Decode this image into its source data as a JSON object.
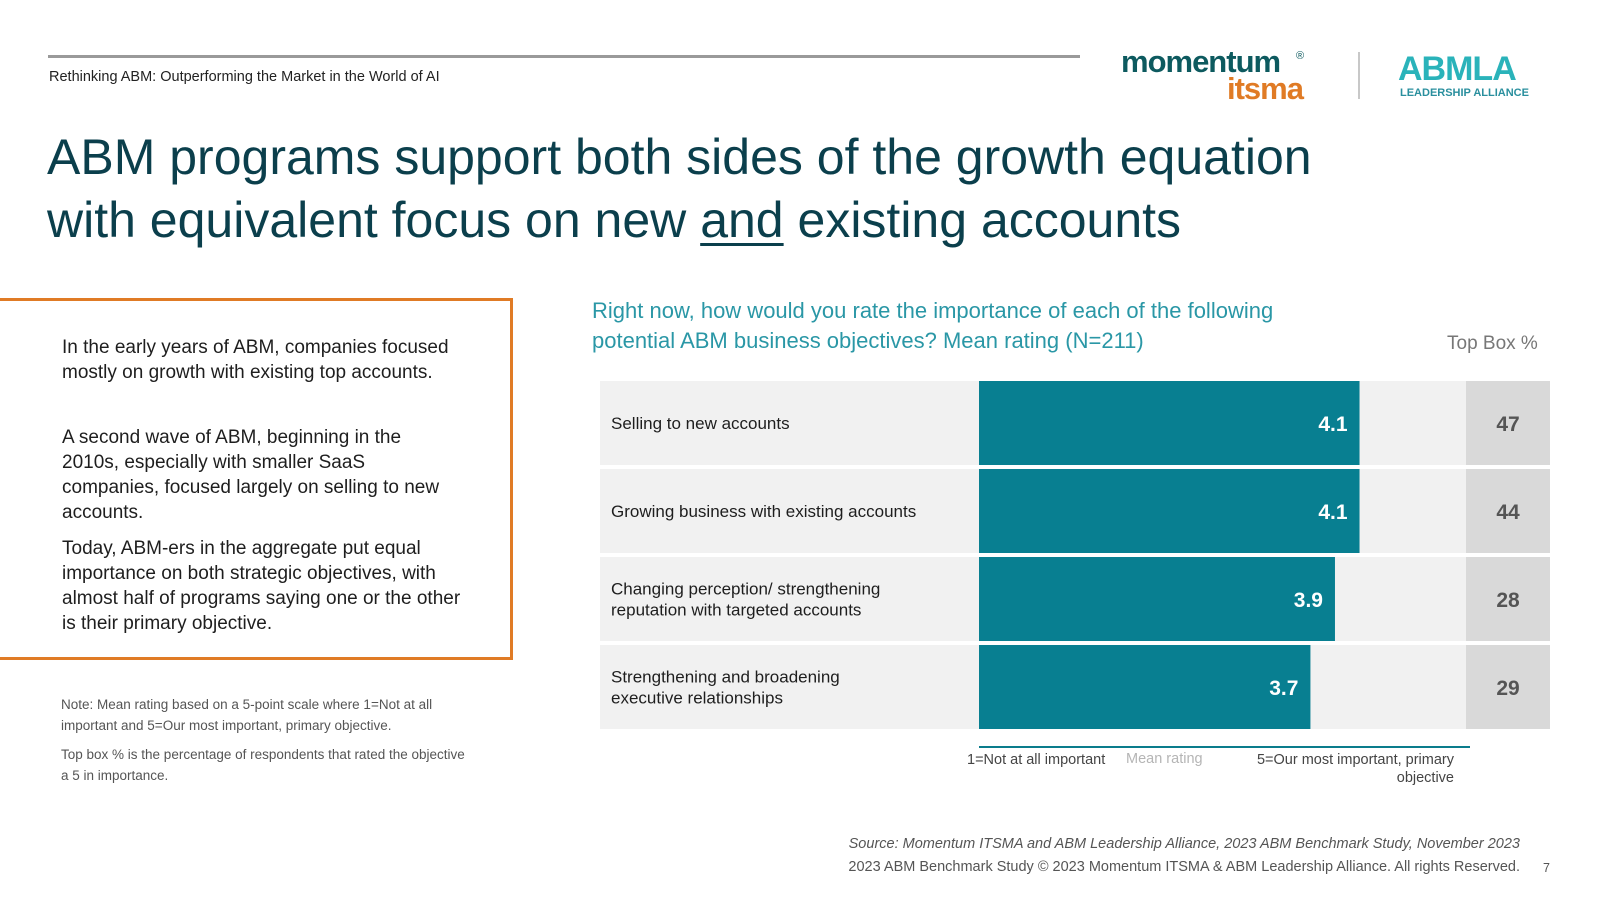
{
  "header": {
    "subtitle": "Rethinking ABM: Outperforming the Market in the World of AI"
  },
  "logos": {
    "momentum_line1": "momentum",
    "momentum_reg": "®",
    "momentum_line2": "itsma",
    "abmla_line1": "ABMLA",
    "abmla_line2": "LEADERSHIP ALLIANCE"
  },
  "title": {
    "line1": "ABM programs support both sides of the growth equation",
    "line2_pre": "with equivalent focus on new ",
    "line2_emph": "and",
    "line2_post": " existing accounts"
  },
  "callout": {
    "p1": "In the early years of ABM, companies focused mostly on growth with existing top accounts.",
    "p2": "A second wave of ABM, beginning in the 2010s, especially with smaller SaaS companies, focused largely on selling to new accounts.",
    "p3": "Today, ABM-ers in the aggregate put equal importance on both strategic objectives, with almost half of programs saying one or the other is their primary objective."
  },
  "notes": {
    "n1": "Note: Mean rating based on a 5-point scale where 1=Not at all important and 5=Our most important, primary objective.",
    "n2": "Top box % is the percentage of respondents that rated the objective a 5 in importance."
  },
  "question": "Right now, how would you rate the importance of each of the following potential ABM business objectives? Mean rating (N=211)",
  "topbox_header": "Top Box %",
  "chart_data": {
    "type": "bar",
    "orientation": "horizontal",
    "categories": [
      [
        "Selling to new accounts"
      ],
      [
        "Growing business with existing accounts"
      ],
      [
        "Changing perception/ strengthening",
        "reputation with targeted accounts"
      ],
      [
        "Strengthening and broadening",
        "executive relationships"
      ]
    ],
    "values": [
      4.1,
      4.1,
      3.9,
      3.7
    ],
    "value_labels": [
      "4.1",
      "4.1",
      "3.9",
      "3.7"
    ],
    "top_box": [
      "47",
      "44",
      "28",
      "29"
    ],
    "xlim": [
      1,
      5
    ],
    "xlabel": "Mean rating",
    "axis_min_label": "1=Not at all important",
    "axis_max_label": "5=Our most important, primary objective",
    "colors": {
      "bar": "#087f91",
      "row_bg": "#f1f1f1",
      "topbox_bg": "#d9d9d9",
      "axis": "#0a7c8c"
    }
  },
  "axis": {
    "left": "1=Not at all important",
    "mid": "Mean rating",
    "right": "5=Our most important, primary objective"
  },
  "footer": {
    "source": "Source: Momentum ITSMA and ABM Leadership Alliance, 2023 ABM Benchmark Study, November 2023",
    "copyright": "2023 ABM Benchmark Study © 2023 Momentum ITSMA & ABM Leadership Alliance. All rights Reserved.",
    "page": "7"
  }
}
